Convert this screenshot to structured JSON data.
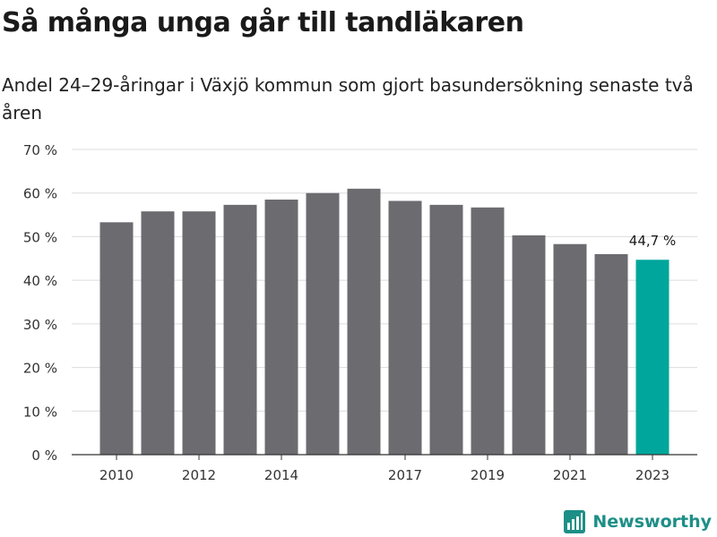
{
  "title": "Så många unga går till tandläkaren",
  "subtitle": "Andel 24–29-åringar i Växjö kommun som gjort basundersökning senaste två åren",
  "brand": {
    "name": "Newsworthy",
    "color": "#1d8f87",
    "icon": "newsworthy-logo-icon"
  },
  "chart_data": {
    "type": "bar",
    "title": "Så många unga går till tandläkaren",
    "subtitle": "Andel 24–29-åringar i Växjö kommun som gjort basundersökning senaste två åren",
    "xlabel": "",
    "ylabel": "",
    "categories": [
      "2010",
      "2011",
      "2012",
      "2013",
      "2014",
      "2015",
      "2016",
      "2017",
      "2018",
      "2019",
      "2020",
      "2021",
      "2022",
      "2023"
    ],
    "x_tick_labels": [
      "2010",
      "2012",
      "2014",
      "2017",
      "2019",
      "2021",
      "2023"
    ],
    "values": [
      53.3,
      55.8,
      55.8,
      57.3,
      58.5,
      60.0,
      61.0,
      58.2,
      57.3,
      56.7,
      50.3,
      48.3,
      46.0,
      44.7
    ],
    "ylim": [
      0,
      70
    ],
    "y_ticks": [
      0,
      10,
      20,
      30,
      40,
      50,
      60,
      70
    ],
    "y_tick_labels": [
      "0 %",
      "10 %",
      "20 %",
      "30 %",
      "40 %",
      "50 %",
      "60 %",
      "70 %"
    ],
    "grid": true,
    "colors": {
      "default": "#6c6b70",
      "highlight": "#00a69b"
    },
    "highlight_index": 13,
    "annotations": [
      {
        "category": "2023",
        "text": "44,7 %"
      }
    ]
  }
}
